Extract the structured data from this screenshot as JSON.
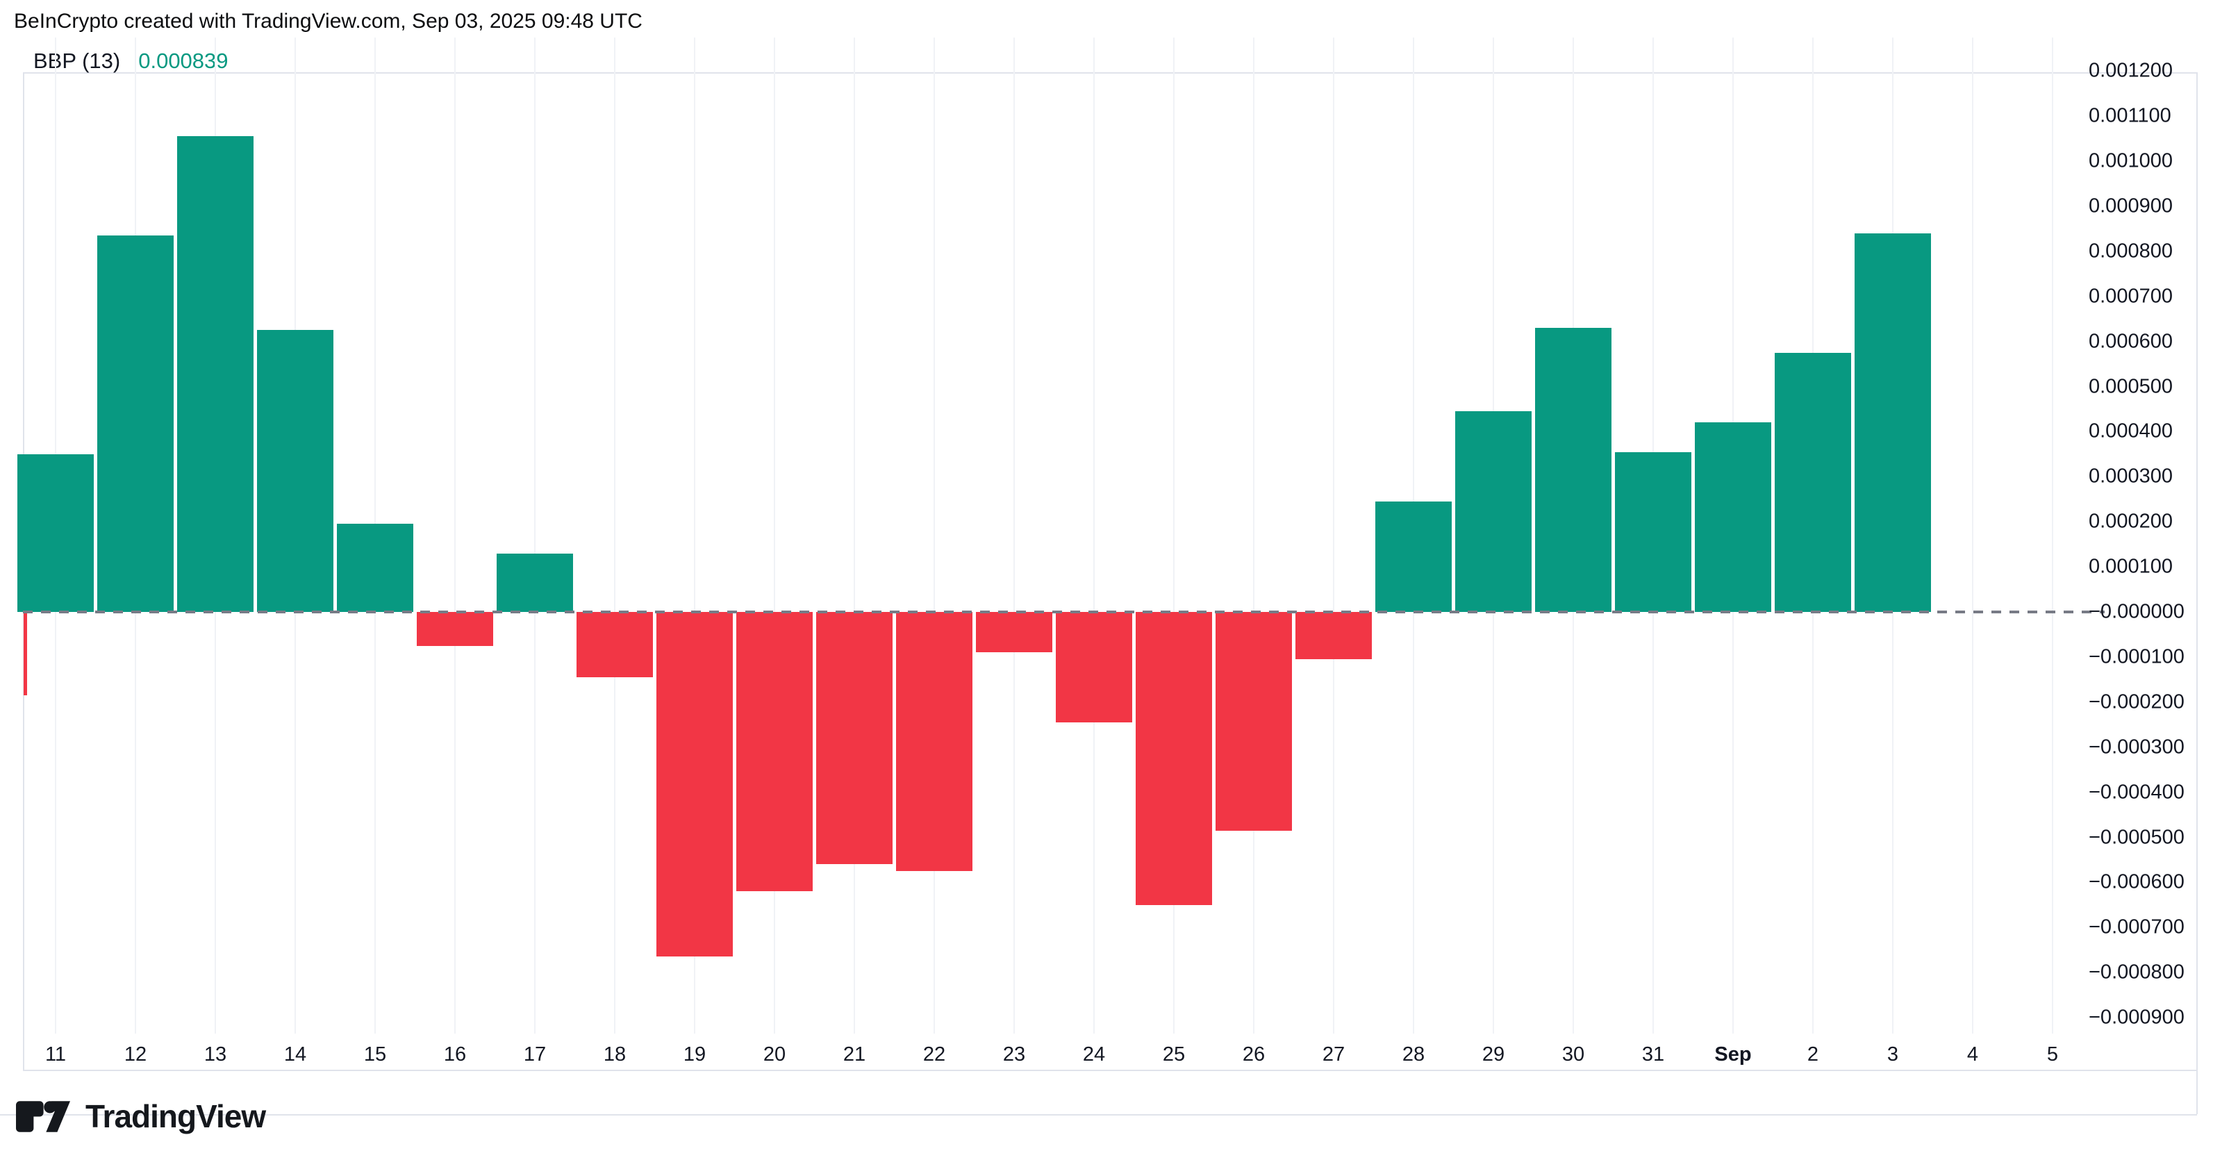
{
  "header": {
    "attribution": "BeInCrypto created with TradingView.com, Sep 03, 2025 09:48 UTC"
  },
  "legend": {
    "indicator": "BBP (13)",
    "value": "0.000839"
  },
  "colors": {
    "positive": "#089981",
    "negative": "#f23645",
    "value_text": "#089981",
    "axis_text": "#131722",
    "zero_dash": "#787b86",
    "panel_border": "#e0e3eb"
  },
  "chart_data": {
    "type": "bar",
    "title": "BBP (13) Bull Bear Power daily histogram",
    "categories": [
      "11",
      "12",
      "13",
      "14",
      "15",
      "16",
      "17",
      "18",
      "19",
      "20",
      "21",
      "22",
      "23",
      "24",
      "25",
      "26",
      "27",
      "28",
      "29",
      "30",
      "31",
      "Sep",
      "2",
      "3",
      "4",
      "5"
    ],
    "values": [
      0.00035,
      0.000835,
      0.001055,
      0.000625,
      0.000195,
      -7.5e-05,
      0.00013,
      -0.000145,
      -0.000765,
      -0.00062,
      -0.00056,
      -0.000575,
      -9e-05,
      -0.000245,
      -0.00065,
      -0.000485,
      -0.000105,
      0.000245,
      0.000445,
      0.00063,
      0.000355,
      0.00042,
      0.000575,
      0.000839,
      null,
      null
    ],
    "clipped_left_bar": {
      "value": -0.000185
    },
    "bold_category": "Sep",
    "current_value": 0.000839,
    "y_axis": {
      "max": 0.0012,
      "min": -0.0009,
      "step": 0.0001,
      "tick_labels": [
        "0.001200",
        "0.001100",
        "0.001000",
        "0.000900",
        "0.000800",
        "0.000700",
        "0.000600",
        "0.000500",
        "0.000400",
        "0.000300",
        "0.000200",
        "0.000100",
        "−0.000000",
        "−0.000100",
        "−0.000200",
        "−0.000300",
        "−0.000400",
        "−0.000500",
        "−0.000600",
        "−0.000700",
        "−0.000800",
        "−0.000900"
      ]
    },
    "grid": "faint-vertical",
    "legend_position": "top-left"
  },
  "footer": {
    "brand": "TradingView"
  }
}
